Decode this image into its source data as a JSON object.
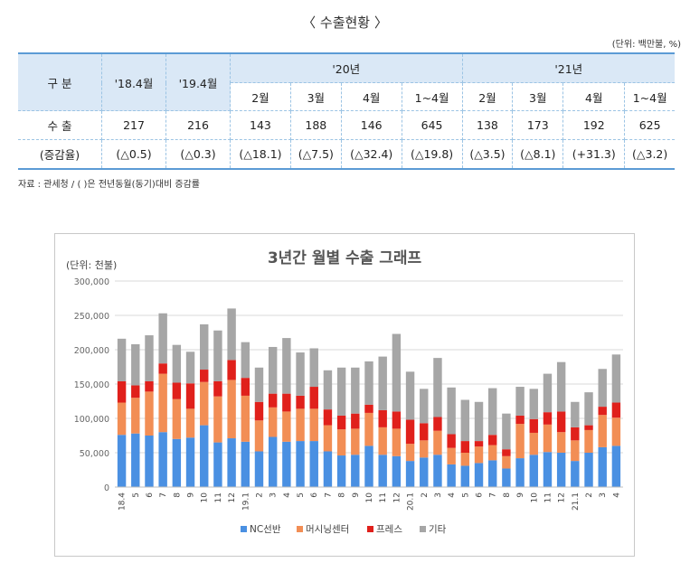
{
  "table": {
    "title": "〈 수출현황 〉",
    "unit": "(단위: 백만불, %)",
    "header": {
      "col0": "구 분",
      "col1": "'18.4월",
      "col2": "'19.4월",
      "group1": "'20년",
      "group2": "'21년",
      "sub": [
        "2월",
        "3월",
        "4월",
        "1~4월",
        "2월",
        "3월",
        "4월",
        "1~4월"
      ]
    },
    "rows": [
      {
        "label": "수 출",
        "cells": [
          "217",
          "216",
          "143",
          "188",
          "146",
          "645",
          "138",
          "173",
          "192",
          "625"
        ]
      },
      {
        "label": "(증감율)",
        "cells": [
          "(△0.5)",
          "(△0.3)",
          "(△18.1)",
          "(△7.5)",
          "(△32.4)",
          "(△19.8)",
          "(△3.5)",
          "(△8.1)",
          "(+31.3)",
          "(△3.2)"
        ]
      }
    ],
    "source": "자료 : 관세청 / ( )은 전년동월(동기)대비 증감률"
  },
  "chart_data": {
    "type": "bar",
    "stacked": true,
    "title": "3년간 월별 수출 그래프",
    "ylabel": "(단위: 천불)",
    "ylim": [
      0,
      300000
    ],
    "yticks": [
      "0",
      "50,000",
      "100,000",
      "150,000",
      "200,000",
      "250,000",
      "300,000"
    ],
    "grid": true,
    "legend_position": "bottom",
    "categories": [
      "18.4",
      "5",
      "6",
      "7",
      "8",
      "9",
      "10",
      "11",
      "12",
      "19.1",
      "2",
      "3",
      "4",
      "5",
      "6",
      "7",
      "8",
      "9",
      "10",
      "11",
      "12",
      "20.1",
      "2",
      "3",
      "4",
      "5",
      "6",
      "7",
      "8",
      "9",
      "10",
      "11",
      "12",
      "21.1",
      "2",
      "3",
      "4"
    ],
    "series": [
      {
        "name": "NC선반",
        "color": "#4a90e2",
        "values": [
          76000,
          78000,
          75000,
          80000,
          70000,
          72000,
          90000,
          65000,
          71000,
          66000,
          52000,
          73000,
          66000,
          67000,
          67000,
          52000,
          46000,
          47000,
          60000,
          47000,
          45000,
          38000,
          43000,
          47000,
          33000,
          31000,
          35000,
          39000,
          27000,
          42000,
          47000,
          51000,
          50000,
          38000,
          50000,
          58000,
          60000
        ]
      },
      {
        "name": "머시닝센터",
        "color": "#f28e55",
        "values": [
          47000,
          52000,
          64000,
          85000,
          58000,
          42000,
          63000,
          67000,
          85000,
          67000,
          45000,
          43000,
          44000,
          47000,
          47000,
          38000,
          38000,
          38000,
          48000,
          40000,
          40000,
          25000,
          25000,
          35000,
          24000,
          19000,
          24000,
          22000,
          18000,
          50000,
          32000,
          40000,
          30000,
          30000,
          33000,
          47000,
          41000
        ]
      },
      {
        "name": "프레스",
        "color": "#e0201b",
        "values": [
          31000,
          18000,
          15000,
          15000,
          24000,
          37000,
          18000,
          22000,
          29000,
          26000,
          27000,
          20000,
          26000,
          19000,
          32000,
          23000,
          20000,
          22000,
          12000,
          25000,
          25000,
          35000,
          25000,
          20000,
          20000,
          17000,
          8000,
          15000,
          10000,
          12000,
          20000,
          18000,
          30000,
          19000,
          7000,
          12000,
          22000
        ]
      },
      {
        "name": "기타",
        "color": "#a6a6a6",
        "values": [
          62000,
          60000,
          67000,
          73000,
          55000,
          46000,
          66000,
          74000,
          75000,
          52000,
          50000,
          68000,
          81000,
          63000,
          56000,
          57000,
          70000,
          67000,
          63000,
          78000,
          113000,
          70000,
          50000,
          86000,
          68000,
          60000,
          57000,
          68000,
          52000,
          42000,
          44000,
          56000,
          72000,
          37000,
          48000,
          55000,
          70000
        ]
      }
    ]
  }
}
